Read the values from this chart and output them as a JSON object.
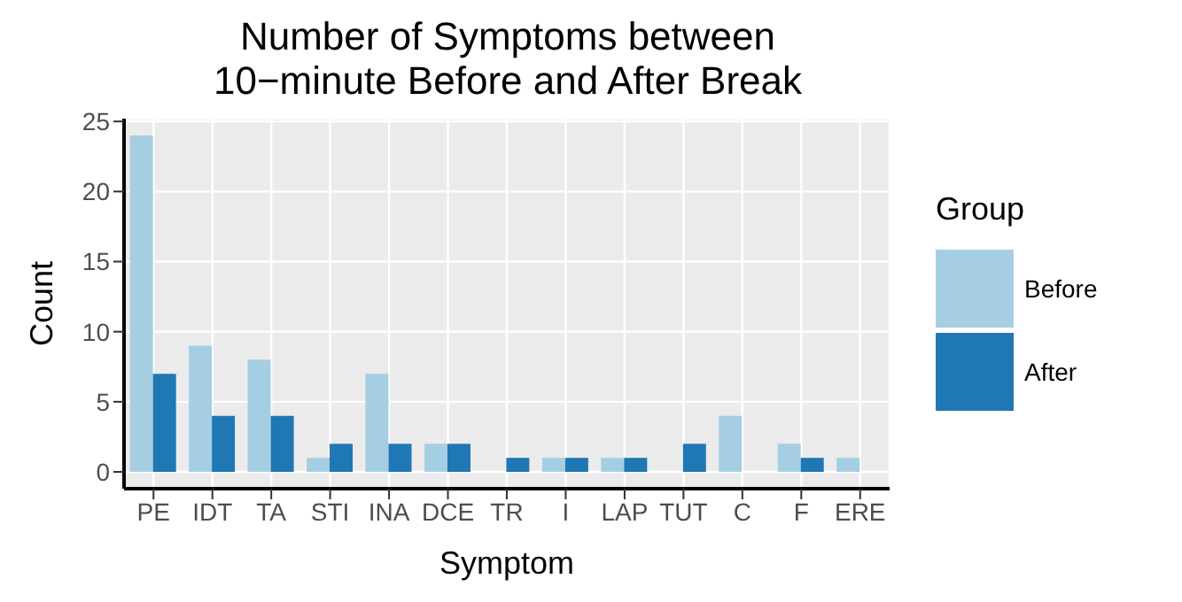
{
  "chart_data": {
    "type": "bar",
    "title": "Number of Symptoms between\n10−minute Before and After Break",
    "xlabel": "Symptom",
    "ylabel": "Count",
    "legend_title": "Group",
    "legend": "right",
    "grid": true,
    "categories": [
      "PE",
      "IDT",
      "TA",
      "STI",
      "INA",
      "DCE",
      "TR",
      "I",
      "LAP",
      "TUT",
      "C",
      "F",
      "ERE"
    ],
    "series": [
      {
        "name": "Before",
        "color": "#a6cee3",
        "values": [
          24,
          9,
          8,
          1,
          7,
          2,
          null,
          1,
          1,
          null,
          4,
          2,
          1
        ]
      },
      {
        "name": "After",
        "color": "#1f78b4",
        "values": [
          7,
          4,
          4,
          2,
          2,
          2,
          1,
          1,
          1,
          2,
          null,
          1,
          null
        ]
      }
    ],
    "ylim": [
      -1.2,
      25.2
    ],
    "yticks": [
      0,
      5,
      10,
      15,
      20,
      25
    ]
  }
}
